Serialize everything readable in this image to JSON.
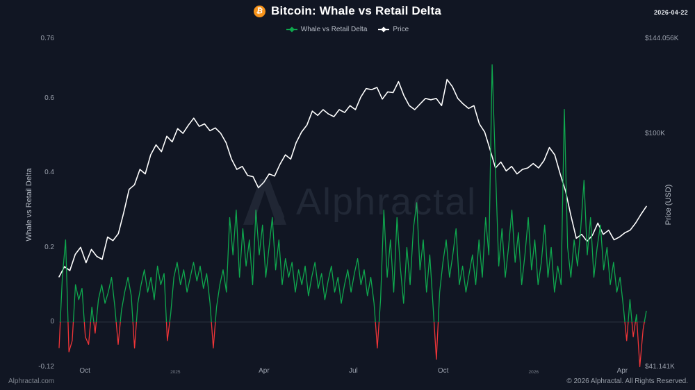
{
  "header": {
    "title": "Bitcoin: Whale vs Retail Delta",
    "date": "2026-04-22",
    "bitcoin_symbol": "₿"
  },
  "legend": {
    "items": [
      {
        "label": "Whale vs Retail Delta",
        "color": "#0fa84e"
      },
      {
        "label": "Price",
        "color": "#ffffff"
      }
    ]
  },
  "watermark": {
    "text": "Alphractal"
  },
  "footer": {
    "left": "Alphractal.com",
    "right": "© 2026 Alphractal. All Rights Reserved."
  },
  "chart_data": {
    "type": "line",
    "title": "Bitcoin: Whale vs Retail Delta",
    "left_axis": {
      "title": "Whale vs Retail Delta",
      "scale": "linear",
      "min": -0.12,
      "max": 0.76,
      "ticks": [
        {
          "v": 0.76,
          "label": "0.76"
        },
        {
          "v": 0.6,
          "label": "0.6"
        },
        {
          "v": 0.4,
          "label": "0.4"
        },
        {
          "v": 0.2,
          "label": "0.2"
        },
        {
          "v": 0,
          "label": "0"
        },
        {
          "v": -0.12,
          "label": "-0.12"
        }
      ]
    },
    "right_axis": {
      "title": "Price (USD)",
      "scale": "log",
      "min": 41.141,
      "max": 144.056,
      "unit": "K USD",
      "ticks": [
        {
          "v": 144.056,
          "label": "$144.056K"
        },
        {
          "v": 100,
          "label": "$100K"
        },
        {
          "v": 41.141,
          "label": "$41.141K"
        }
      ]
    },
    "x_axis": {
      "ticks": [
        {
          "label": "Oct",
          "pos": 0.044,
          "minor": false
        },
        {
          "label": "2025",
          "pos": 0.198,
          "minor": true
        },
        {
          "label": "Apr",
          "pos": 0.349,
          "minor": false
        },
        {
          "label": "Jul",
          "pos": 0.501,
          "minor": false
        },
        {
          "label": "Oct",
          "pos": 0.654,
          "minor": false
        },
        {
          "label": "2026",
          "pos": 0.808,
          "minor": true
        },
        {
          "label": "Apr",
          "pos": 0.959,
          "minor": false
        }
      ]
    },
    "zero_line": 0,
    "series": [
      {
        "name": "Whale vs Retail Delta",
        "axis": "left",
        "color": "#0fa84e",
        "negative_color": "#f03538",
        "values": [
          -0.07,
          0.12,
          0.22,
          -0.08,
          -0.05,
          0.1,
          0.06,
          0.09,
          -0.04,
          -0.06,
          0.04,
          -0.03,
          0.06,
          0.1,
          0.05,
          0.08,
          0.12,
          0.04,
          -0.06,
          0.03,
          0.08,
          0.12,
          0.07,
          -0.07,
          0.05,
          0.1,
          0.14,
          0.08,
          0.12,
          0.06,
          0.15,
          0.1,
          0.13,
          -0.05,
          0.02,
          0.12,
          0.16,
          0.1,
          0.14,
          0.08,
          0.12,
          0.16,
          0.11,
          0.15,
          0.09,
          0.13,
          0.05,
          -0.07,
          0.04,
          0.1,
          0.14,
          0.08,
          0.28,
          0.18,
          0.3,
          0.12,
          0.25,
          0.15,
          0.22,
          0.1,
          0.3,
          0.18,
          0.26,
          0.12,
          0.2,
          0.28,
          0.14,
          0.22,
          0.1,
          0.17,
          0.12,
          0.16,
          0.08,
          0.14,
          0.1,
          0.15,
          0.07,
          0.12,
          0.16,
          0.09,
          0.13,
          0.06,
          0.11,
          0.15,
          0.08,
          0.12,
          0.05,
          0.1,
          0.14,
          0.08,
          0.13,
          0.17,
          0.1,
          0.14,
          0.07,
          0.12,
          0.05,
          -0.07,
          0.06,
          0.3,
          0.12,
          0.22,
          0.08,
          0.28,
          0.15,
          0.05,
          0.2,
          0.1,
          0.25,
          0.32,
          0.14,
          0.22,
          0.08,
          0.18,
          0.04,
          -0.1,
          0.08,
          0.16,
          0.22,
          0.12,
          0.18,
          0.25,
          0.1,
          0.15,
          0.08,
          0.13,
          0.18,
          0.1,
          0.22,
          0.12,
          0.28,
          0.18,
          0.69,
          0.42,
          0.15,
          0.25,
          0.12,
          0.2,
          0.3,
          0.16,
          0.24,
          0.1,
          0.18,
          0.28,
          0.14,
          0.22,
          0.1,
          0.16,
          0.26,
          0.12,
          0.2,
          0.08,
          0.15,
          0.1,
          0.57,
          0.2,
          0.12,
          0.22,
          0.15,
          0.25,
          0.38,
          0.18,
          0.28,
          0.12,
          0.2,
          0.26,
          0.14,
          0.2,
          0.1,
          0.16,
          0.08,
          0.12,
          0.04,
          -0.05,
          0.06,
          -0.04,
          0.02,
          -0.12,
          -0.02,
          0.03
        ]
      },
      {
        "name": "Price",
        "axis": "right",
        "color": "#ffffff",
        "values": [
          58.0,
          60.3,
          59.4,
          63.2,
          64.9,
          61.2,
          64.4,
          62.7,
          62.0,
          67.5,
          66.6,
          68.4,
          74.1,
          81.0,
          82.4,
          87.4,
          85.9,
          92.4,
          96.0,
          93.5,
          99.2,
          97.1,
          102.1,
          100.3,
          103.5,
          106.3,
          103.0,
          104.0,
          101.3,
          102.4,
          100.3,
          96.8,
          90.9,
          87.4,
          88.4,
          85.4,
          85.0,
          81.5,
          83.2,
          85.9,
          85.2,
          89.1,
          92.4,
          90.9,
          96.8,
          100.8,
          103.5,
          109.2,
          107.4,
          109.8,
          108.0,
          106.9,
          109.8,
          108.6,
          111.5,
          109.8,
          115.2,
          119.0,
          118.5,
          119.5,
          114.3,
          117.5,
          117.2,
          122.2,
          115.9,
          111.5,
          109.8,
          112.2,
          114.6,
          114.0,
          114.6,
          111.5,
          123.2,
          119.9,
          114.6,
          112.2,
          110.3,
          111.5,
          104.0,
          100.8,
          94.2,
          87.9,
          89.9,
          86.9,
          88.4,
          85.9,
          87.4,
          87.9,
          89.4,
          87.9,
          90.4,
          95.0,
          92.4,
          85.9,
          80.5,
          73.2,
          67.2,
          68.2,
          66.4,
          68.0,
          71.2,
          68.2,
          69.3,
          66.8,
          67.5,
          68.6,
          69.3,
          71.2,
          73.6,
          75.9
        ]
      }
    ]
  }
}
